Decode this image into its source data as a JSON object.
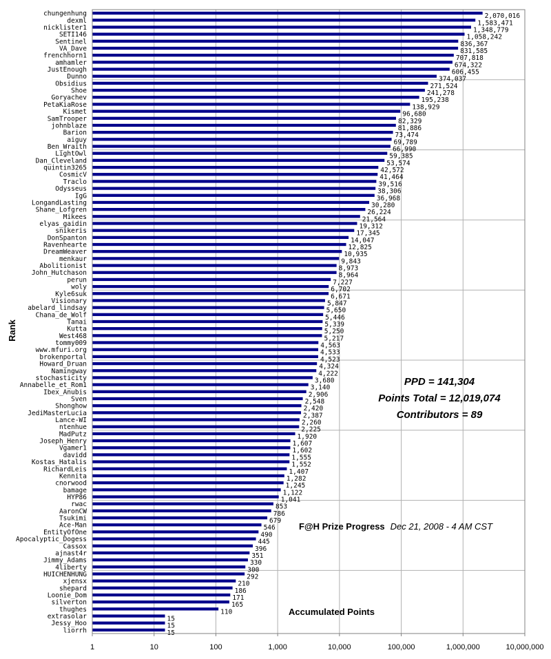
{
  "chart_data": {
    "type": "bar",
    "orientation": "horizontal",
    "x_scale": "log",
    "xlim": [
      1,
      10000000
    ],
    "x_ticks": [
      "1",
      "10",
      "100",
      "1,000",
      "10,000",
      "100,000",
      "1,000,000",
      "10,000,000"
    ],
    "ylabel": "Rank",
    "bar_color": "#00008b",
    "grid": true,
    "categories": [
      "chungenhung",
      "dexml",
      "nicklister1",
      "SETI146",
      "Sentinel",
      "VA_Dave",
      "frenchhorn1",
      "amhamler",
      "JustEnough",
      "Dunno",
      "Obsidius",
      "Shoe",
      "Goryachev",
      "PetaKiaRose",
      "Kismet",
      "SamTrooper",
      "johnblaze",
      "Barion",
      "aiguy",
      "Ben_Wraith",
      "LightOwl",
      "Dan_Cleveland",
      "quintin3265",
      "CosmicV",
      "Traclo",
      "Odysseus",
      "IgG",
      "LongandLasting",
      "Shane_Lofgren",
      "Mikees",
      "elyas_gaidin",
      "snikeris",
      "DonSpanton",
      "Ravenhearte",
      "DreamWeaver",
      "menkaur",
      "Abolitionist",
      "John_Hutchason",
      "perun",
      "woly",
      "Kyle6suk",
      "Visionary",
      "abelard_lindsay",
      "Chana_de_Wolf",
      "Tanai",
      "Kutta",
      "West468",
      "tommy009",
      "www.mfuri.org",
      "brokenportal",
      "Howard_Druan",
      "Namingway",
      "stochasticity",
      "Annabelle_et_Rom1",
      "Ibex_Anubis",
      "Sven",
      "Shonghow",
      "JediMasterLucia",
      "Lance-WI",
      "ntenhue",
      "MadPutz",
      "Joseph_Henry",
      "Vgamer1",
      "davidd",
      "Kostas_Hatalis",
      "RichardLeis",
      "Kennita",
      "cnorwood",
      "bamage",
      "HYP86",
      "rwac",
      "AaronCW",
      "Tsukimi",
      "Ace-Man",
      "EntityOfOne",
      "Apocalyptic_Dogess",
      "Cassox",
      "ajnast4r",
      "Jimmy_Adams",
      "4liberty",
      "HUICHENHUNG",
      "xjensx",
      "shepard",
      "Loonie_Dom",
      "silverton",
      "thughes",
      "extrasolar",
      "Jessy_Hoo",
      "liorrh"
    ],
    "values": [
      2070016,
      1583471,
      1348779,
      1058242,
      836367,
      831585,
      707818,
      674322,
      606455,
      374037,
      271524,
      241278,
      195238,
      138929,
      96680,
      82329,
      81886,
      73474,
      69789,
      66990,
      59385,
      53574,
      42572,
      41464,
      39516,
      38306,
      36968,
      30280,
      26224,
      21564,
      19312,
      17345,
      14047,
      12825,
      10935,
      9843,
      8973,
      8964,
      7227,
      6702,
      6671,
      5847,
      5650,
      5446,
      5339,
      5250,
      5217,
      4563,
      4533,
      4523,
      4324,
      4222,
      3680,
      3140,
      2906,
      2548,
      2420,
      2387,
      2260,
      2225,
      1920,
      1607,
      1602,
      1555,
      1552,
      1407,
      1282,
      1245,
      1122,
      1041,
      853,
      786,
      679,
      546,
      490,
      445,
      396,
      351,
      330,
      300,
      292,
      210,
      186,
      171,
      165,
      110,
      15,
      15,
      15
    ],
    "value_labels": [
      "2,070,016",
      "1,583,471",
      "1,348,779",
      "1,058,242",
      "836,367",
      "831,585",
      "707,818",
      "674,322",
      "606,455",
      "374,037",
      "271,524",
      "241,278",
      "195,238",
      "138,929",
      "96,680",
      "82,329",
      "81,886",
      "73,474",
      "69,789",
      "66,990",
      "59,385",
      "53,574",
      "42,572",
      "41,464",
      "39,516",
      "38,306",
      "36,968",
      "30,280",
      "26,224",
      "21,564",
      "19,312",
      "17,345",
      "14,047",
      "12,825",
      "10,935",
      "9,843",
      "8,973",
      "8,964",
      "7,227",
      "6,702",
      "6,671",
      "5,847",
      "5,650",
      "5,446",
      "5,339",
      "5,250",
      "5,217",
      "4,563",
      "4,533",
      "4,523",
      "4,324",
      "4,222",
      "3,680",
      "3,140",
      "2,906",
      "2,548",
      "2,420",
      "2,387",
      "2,260",
      "2,225",
      "1,920",
      "1,607",
      "1,602",
      "1,555",
      "1,552",
      "1,407",
      "1,282",
      "1,245",
      "1,122",
      "1,041",
      "853",
      "786",
      "679",
      "546",
      "490",
      "445",
      "396",
      "351",
      "330",
      "300",
      "292",
      "210",
      "186",
      "171",
      "165",
      "110",
      "15",
      "15",
      "15"
    ],
    "annotations": {
      "ppd": "PPD = 141,304",
      "points_total": "Points Total = 12,019,074",
      "contributors": "Contributors = 89",
      "progress_title": "F@H Prize Progress",
      "progress_date": "Dec 21, 2008 - 4 AM CST",
      "series_label": "Accumulated Points"
    }
  }
}
